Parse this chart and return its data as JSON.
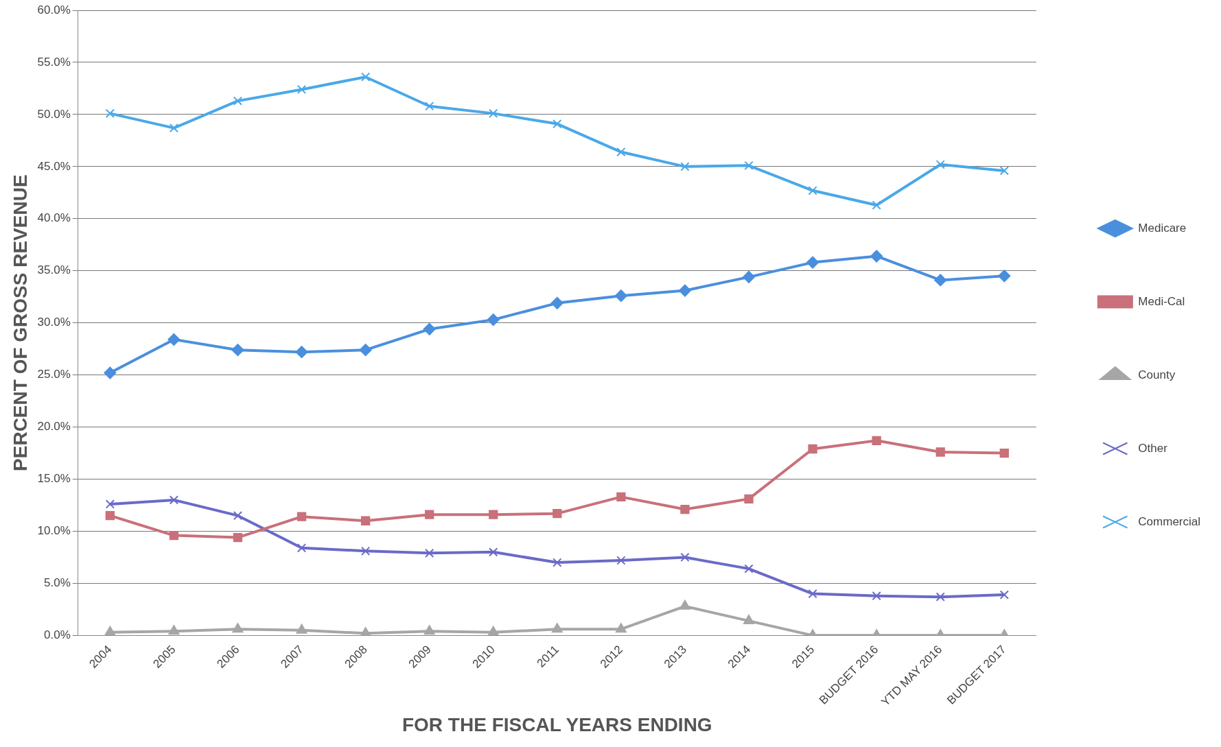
{
  "chart_data": {
    "type": "line",
    "xlabel": "FOR THE FISCAL YEARS ENDING",
    "ylabel": "PERCENT OF GROSS REVENUE",
    "categories": [
      "2004",
      "2005",
      "2006",
      "2007",
      "2008",
      "2009",
      "2010",
      "2011",
      "2012",
      "2013",
      "2014",
      "2015",
      "BUDGET 2016",
      "YTD MAY 2016",
      "BUDGET 2017"
    ],
    "series": [
      {
        "name": "Medicare",
        "color": "#4a8fde",
        "marker": "diamond",
        "values": [
          25.2,
          28.4,
          27.4,
          27.2,
          27.4,
          29.4,
          30.3,
          31.9,
          32.6,
          33.1,
          34.4,
          35.8,
          36.4,
          34.1,
          34.5
        ]
      },
      {
        "name": "Medi-Cal",
        "color": "#c9707a",
        "marker": "square",
        "values": [
          11.5,
          9.6,
          9.4,
          11.4,
          11.0,
          11.6,
          11.6,
          11.7,
          13.3,
          12.1,
          13.1,
          17.9,
          18.7,
          17.6,
          17.5
        ]
      },
      {
        "name": "County",
        "color": "#a6a6a6",
        "marker": "triangle",
        "values": [
          0.3,
          0.4,
          0.6,
          0.5,
          0.2,
          0.4,
          0.3,
          0.6,
          0.6,
          2.8,
          1.4,
          0.0,
          0.0,
          0.0,
          0.0
        ]
      },
      {
        "name": "Other",
        "color": "#6a6ac8",
        "marker": "cross",
        "values": [
          12.6,
          13.0,
          11.5,
          8.4,
          8.1,
          7.9,
          8.0,
          7.0,
          7.2,
          7.5,
          6.4,
          4.0,
          3.8,
          3.7,
          3.9
        ]
      },
      {
        "name": "Commercial",
        "color": "#4aa8e8",
        "marker": "cross",
        "values": [
          50.1,
          48.7,
          51.3,
          52.4,
          53.6,
          50.8,
          50.1,
          49.1,
          46.4,
          45.0,
          45.1,
          42.7,
          41.3,
          45.2,
          44.6
        ]
      }
    ],
    "ylim": [
      0,
      60
    ],
    "yticks": [
      {
        "value": 0,
        "label": "0.0%"
      },
      {
        "value": 5,
        "label": "5.0%"
      },
      {
        "value": 10,
        "label": "10.0%"
      },
      {
        "value": 15,
        "label": "15.0%"
      },
      {
        "value": 20,
        "label": "20.0%"
      },
      {
        "value": 25,
        "label": "25.0%"
      },
      {
        "value": 30,
        "label": "30.0%"
      },
      {
        "value": 35,
        "label": "35.0%"
      },
      {
        "value": 40,
        "label": "40.0%"
      },
      {
        "value": 45,
        "label": "45.0%"
      },
      {
        "value": 50,
        "label": "50.0%"
      },
      {
        "value": 55,
        "label": "55.0%"
      },
      {
        "value": 60,
        "label": "60.0%"
      }
    ],
    "grid": "y",
    "legend": "right"
  }
}
